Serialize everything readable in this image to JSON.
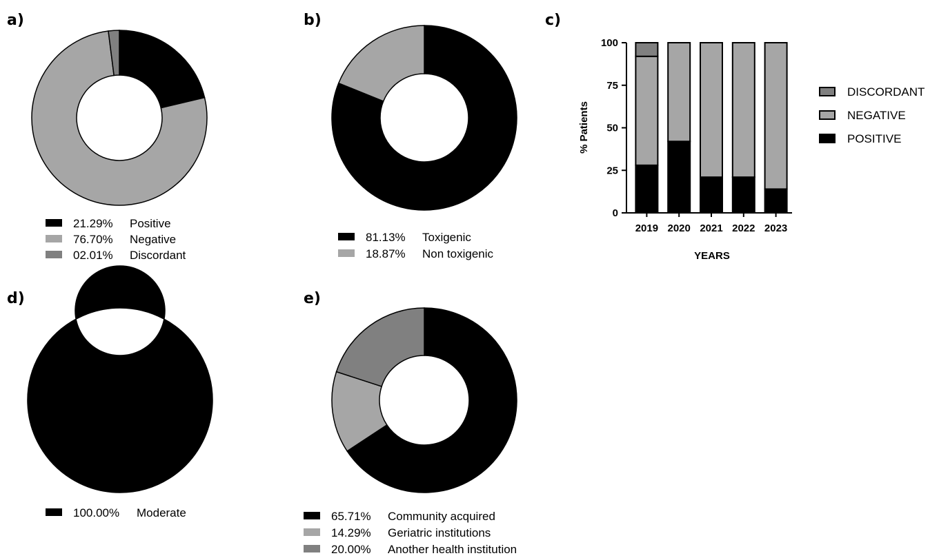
{
  "colors": {
    "black": "#000000",
    "light_gray": "#a6a6a6",
    "mid_gray": "#808080",
    "outline": "#000000"
  },
  "chart_data": [
    {
      "id": "a",
      "panel_label": "a)",
      "type": "pie",
      "slices": [
        {
          "value": 21.29,
          "pct_label": "21.29%",
          "label": "Positive",
          "color": "#000000"
        },
        {
          "value": 76.7,
          "pct_label": "76.70%",
          "label": "Negative",
          "color": "#a6a6a6"
        },
        {
          "value": 2.01,
          "pct_label": "02.01%",
          "label": "Discordant",
          "color": "#808080"
        }
      ]
    },
    {
      "id": "b",
      "panel_label": "b)",
      "type": "pie",
      "slices": [
        {
          "value": 81.13,
          "pct_label": "81.13%",
          "label": "Toxigenic",
          "color": "#000000"
        },
        {
          "value": 18.87,
          "pct_label": "18.87%",
          "label": "Non toxigenic",
          "color": "#a6a6a6"
        }
      ]
    },
    {
      "id": "c",
      "panel_label": "c)",
      "type": "bar",
      "stacked": true,
      "categories": [
        "2019",
        "2020",
        "2021",
        "2022",
        "2023"
      ],
      "series": [
        {
          "name": "POSITIVE",
          "color": "#000000",
          "values": [
            28,
            42,
            21,
            21,
            14
          ]
        },
        {
          "name": "NEGATIVE",
          "color": "#a6a6a6",
          "values": [
            64,
            58,
            79,
            79,
            86
          ]
        },
        {
          "name": "DISCORDANT",
          "color": "#808080",
          "values": [
            8,
            0,
            0,
            0,
            0
          ]
        }
      ],
      "legend_order": [
        "DISCORDANT",
        "NEGATIVE",
        "POSITIVE"
      ],
      "xlabel": "YEARS",
      "ylabel": "% Patients",
      "ylim": [
        0,
        100
      ],
      "yticks": [
        0,
        25,
        50,
        75,
        100
      ],
      "legend": "right",
      "grid": false
    },
    {
      "id": "d",
      "panel_label": "d)",
      "type": "pie",
      "slices": [
        {
          "value": 100.0,
          "pct_label": "100.00%",
          "label": "Moderate",
          "color": "#000000"
        }
      ]
    },
    {
      "id": "e",
      "panel_label": "e)",
      "type": "pie",
      "slices": [
        {
          "value": 65.71,
          "pct_label": "65.71%",
          "label": "Community acquired",
          "color": "#000000"
        },
        {
          "value": 14.29,
          "pct_label": "14.29%",
          "label": "Geriatric institutions",
          "color": "#a6a6a6"
        },
        {
          "value": 20.0,
          "pct_label": "20.00%",
          "label": "Another health institution",
          "color": "#808080"
        }
      ]
    }
  ]
}
